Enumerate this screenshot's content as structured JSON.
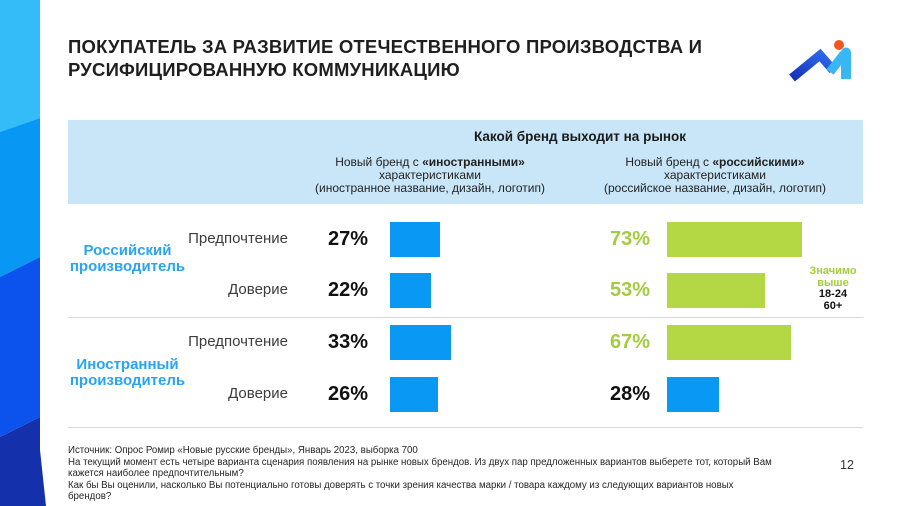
{
  "slide": {
    "title": "ПОКУПАТЕЛЬ ЗА РАЗВИТИЕ ОТЕЧЕСТВЕННОГО ПРОИЗВОДСТВА И РУСИФИЦИРОВАННУЮ КОММУНИКАЦИЮ",
    "page_number": "12"
  },
  "header": {
    "question": "Какой бренд выходит на рынок",
    "columns": [
      {
        "prefix": "Новый бренд с ",
        "bold": "«иностранными»",
        "line2": "характеристиками",
        "line3": "(иностранное название, дизайн, логотип)"
      },
      {
        "prefix": "Новый бренд с ",
        "bold": "«российскими»",
        "line2": "характеристиками",
        "line3": "(российское название, дизайн, логотип)"
      }
    ]
  },
  "groups": [
    {
      "label": "Российский производитель",
      "rows": [
        {
          "metric": "Предпочтение",
          "foreign": {
            "label": "27%",
            "value": 27,
            "color": "#0999f5",
            "text_color": "#111111"
          },
          "russian": {
            "label": "73%",
            "value": 73,
            "color": "#b3d843",
            "text_color": "#a3cc3e"
          }
        },
        {
          "metric": "Доверие",
          "foreign": {
            "label": "22%",
            "value": 22,
            "color": "#0999f5",
            "text_color": "#111111"
          },
          "russian": {
            "label": "53%",
            "value": 53,
            "color": "#b3d843",
            "text_color": "#a3cc3e"
          }
        }
      ]
    },
    {
      "label": "Иностранный производитель",
      "rows": [
        {
          "metric": "Предпочтение",
          "foreign": {
            "label": "33%",
            "value": 33,
            "color": "#0999f5",
            "text_color": "#111111"
          },
          "russian": {
            "label": "67%",
            "value": 67,
            "color": "#b3d843",
            "text_color": "#a3cc3e"
          }
        },
        {
          "metric": "Доверие",
          "foreign": {
            "label": "26%",
            "value": 26,
            "color": "#0999f5",
            "text_color": "#111111"
          },
          "russian": {
            "label": "28%",
            "value": 28,
            "color": "#0999f5",
            "text_color": "#111111"
          }
        }
      ]
    }
  ],
  "significance": {
    "line1": "Значимо",
    "line2": "выше",
    "group1": "18-24",
    "group2": "60+"
  },
  "footer": {
    "source": "Источник: Опрос Ромир «Новые русские бренды», Январь 2023, выборка 700",
    "q1": "На текущий момент есть четыре варианта сценария появления на рынке новых брендов. Из двух пар предложенных вариантов выберете тот, который Вам кажется наиболее предпочтительным?",
    "q2": "Как бы Вы оценили, насколько Вы потенциально готовы доверять с точки зрения качества марки / товара каждому из следующих вариантов новых брендов?"
  },
  "colors": {
    "bar_blue": "#0999f5",
    "bar_green": "#b3d843",
    "green_text": "#a3cc3e",
    "group_label_blue": "#29a4f1",
    "band_bg": "#c9e6f8",
    "logo_orange": "#f1561b",
    "logo_light_blue": "#38b7f4",
    "logo_dark_blue": "#1633b8"
  },
  "chart_data": {
    "type": "bar",
    "orientation": "horizontal",
    "title": "Какой бренд выходит на рынок",
    "unit": "%",
    "xlim": [
      0,
      100
    ],
    "categories": [
      "Российский производитель — Предпочтение",
      "Российский производитель — Доверие",
      "Иностранный производитель — Предпочтение",
      "Иностранный производитель — Доверие"
    ],
    "series": [
      {
        "name": "Новый бренд с «иностранными» характеристиками (иностранное название, дизайн, логотип)",
        "values": [
          27,
          22,
          33,
          26
        ]
      },
      {
        "name": "Новый бренд с «российскими» характеристиками (российское название, дизайн, логотип)",
        "values": [
          73,
          53,
          67,
          28
        ]
      }
    ],
    "annotation": "Значимо выше: 18-24, 60+ (для зелёных значений)",
    "source": "Опрос Ромир «Новые русские бренды», Январь 2023, выборка 700"
  }
}
